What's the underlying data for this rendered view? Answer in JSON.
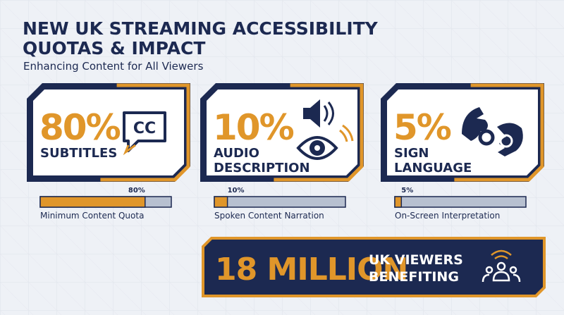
{
  "header": {
    "title_lines": [
      "NEW UK STREAMING ACCESSIBILITY",
      "QUOTAS & IMPACT"
    ],
    "subtitle": "Enhancing Content for All Viewers"
  },
  "cards": [
    {
      "value": 80,
      "label": "80%",
      "name_lines": [
        "SUBTITLES"
      ],
      "caption": "Minimum Content Quota"
    },
    {
      "value": 10,
      "label": "10%",
      "name_lines": [
        "AUDIO",
        "DESCRIPTION"
      ],
      "caption": "Spoken Content Narration"
    },
    {
      "value": 5,
      "label": "5%",
      "name_lines": [
        "SIGN",
        "LANGUAGE"
      ],
      "caption": "On-Screen Interpretation"
    }
  ],
  "bar_range": [
    0,
    100
  ],
  "icon_text": "CC",
  "banner": {
    "figure": "18 MILLION",
    "text_lines": [
      "UK VIEWERS",
      "BENEFITING"
    ]
  }
}
